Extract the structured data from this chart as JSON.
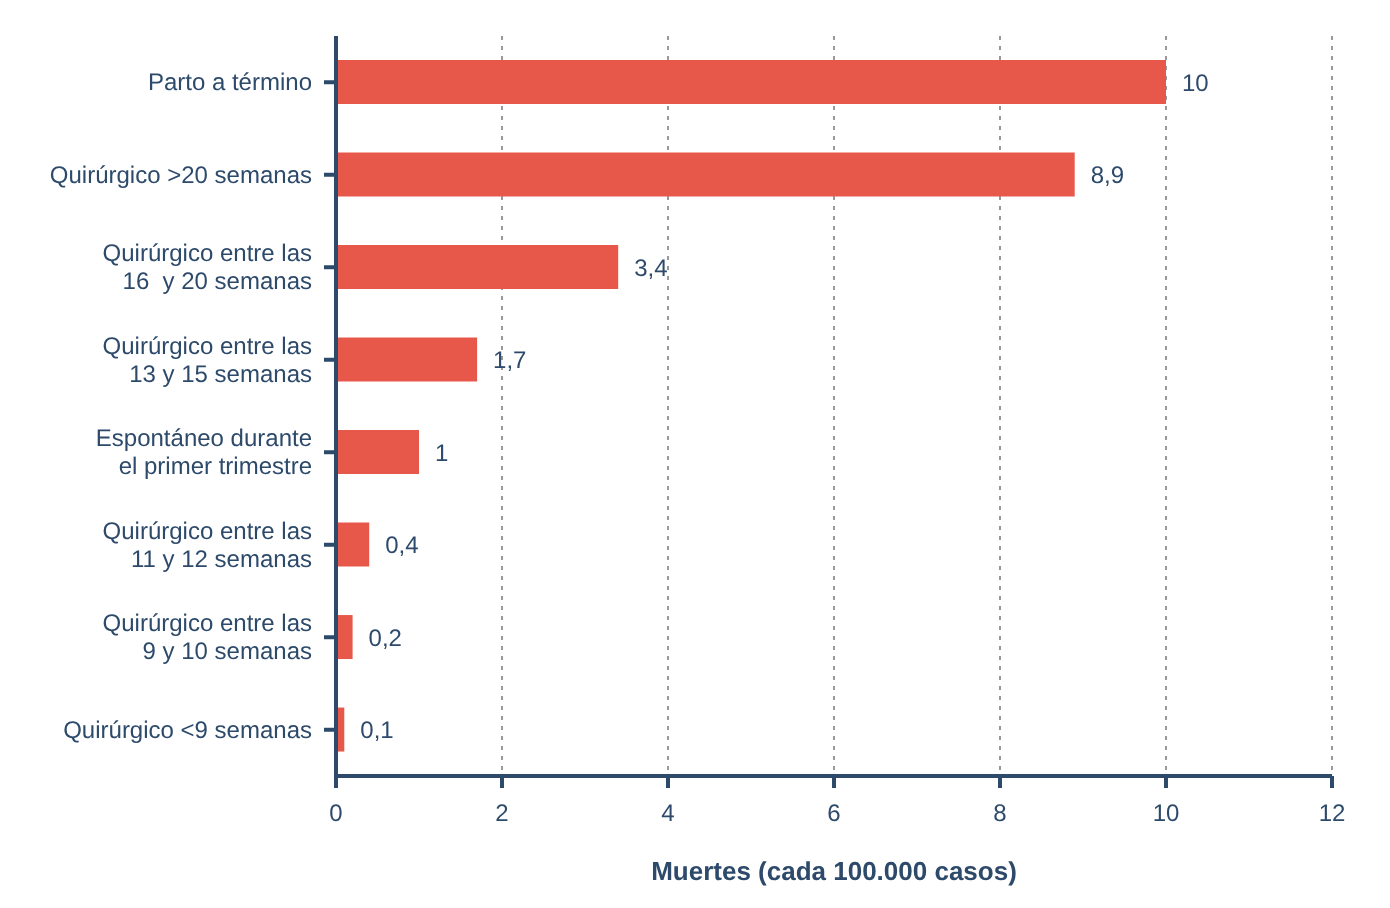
{
  "chart_data": {
    "type": "bar",
    "orientation": "horizontal",
    "xlabel": "Muertes (cada 100.000 casos)",
    "categories": [
      "Parto a término",
      "Quirúrgico >20 semanas",
      "Quirúrgico entre las\n16  y 20 semanas",
      "Quirúrgico entre las\n13 y 15 semanas",
      "Espontáneo durante\nel primer trimestre",
      "Quirúrgico entre las\n11 y 12 semanas",
      "Quirúrgico entre las\n9 y 10 semanas",
      "Quirúrgico <9 semanas"
    ],
    "values": [
      10,
      8.9,
      3.4,
      1.7,
      1,
      0.4,
      0.2,
      0.1
    ],
    "value_labels": [
      "10",
      "8,9",
      "3,4",
      "1,7",
      "1",
      "0,4",
      "0,2",
      "0,1"
    ],
    "color": "#e8584a",
    "xlim": [
      0,
      12
    ],
    "xticks": [
      0,
      2,
      4,
      6,
      8,
      10,
      12
    ],
    "grid": "x"
  }
}
